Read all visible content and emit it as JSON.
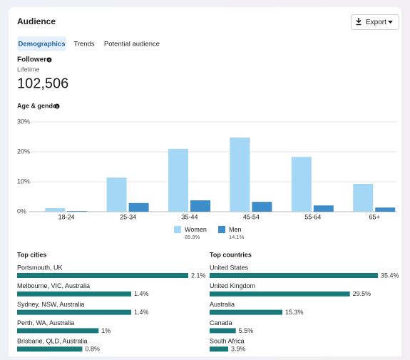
{
  "header": {
    "title": "Audience",
    "export": "Export"
  },
  "tabs": [
    "Demographics",
    "Trends",
    "Potential audience"
  ],
  "followers": {
    "title": "Followers",
    "period": "Lifetime",
    "count": "102,506"
  },
  "chart_data": {
    "type": "bar",
    "title": "Age & gender",
    "categories": [
      "18-24",
      "25-34",
      "35-44",
      "45-54",
      "55-64",
      "65+"
    ],
    "series": [
      {
        "name": "Women",
        "color": "#a3d7f5",
        "share": "85.9%",
        "values": [
          1.2,
          11.4,
          21,
          24.8,
          18.3,
          9.3
        ]
      },
      {
        "name": "Men",
        "color": "#3c8dc9",
        "share": "14.1%",
        "values": [
          0.2,
          2.9,
          3.8,
          3.3,
          2.1,
          1.4
        ]
      }
    ],
    "ylim": [
      0,
      30
    ],
    "yticks": [
      {
        "value": 0,
        "label": "0%"
      },
      {
        "value": 10,
        "label": "10%"
      },
      {
        "value": 20,
        "label": "20%"
      },
      {
        "value": 30,
        "label": "30%"
      }
    ],
    "grid": true
  },
  "top_cities": {
    "title": "Top cities",
    "color": "#17797a",
    "labels": [
      "Portsmouth, UK",
      "Melbourne, VIC, Australia",
      "Sydney, NSW, Australia",
      "Perth, WA, Australia",
      "Brisbane, QLD, Australia"
    ],
    "values": [
      2.1,
      1.4,
      1.4,
      1,
      0.8
    ],
    "value_labels": [
      "2.1%",
      "1.4%",
      "1.4%",
      "1%",
      "0.8%"
    ]
  },
  "top_countries": {
    "title": "Top countries",
    "color": "#17797a",
    "labels": [
      "United States",
      "United Kingdom",
      "Australia",
      "Canada",
      "South Africa"
    ],
    "values": [
      35.4,
      29.5,
      15.3,
      5.5,
      3.9
    ],
    "value_labels": [
      "35.4%",
      "29.5%",
      "15.3%",
      "5.5%",
      "3.9%"
    ]
  }
}
